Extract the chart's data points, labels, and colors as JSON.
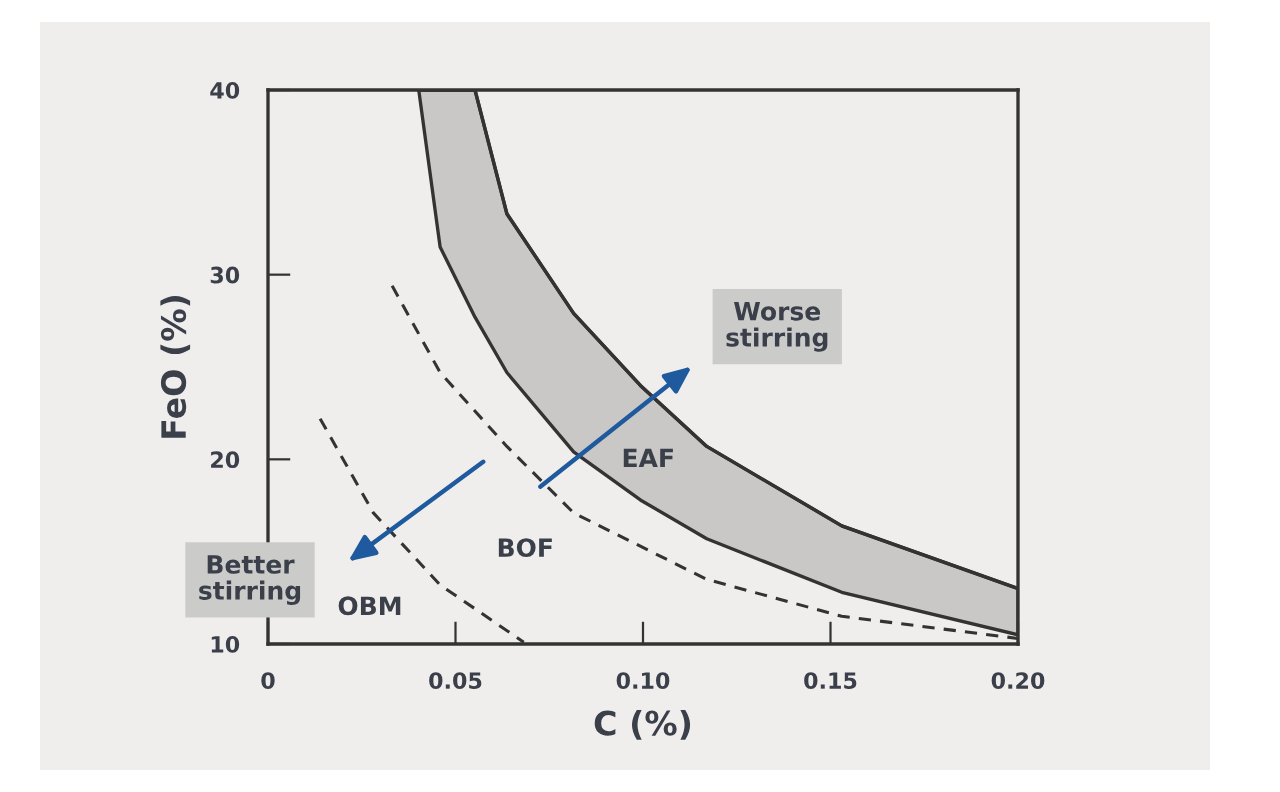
{
  "chart_data": {
    "type": "line",
    "xlabel": "C (%)",
    "ylabel": "FeO (%)",
    "xlim": [
      0,
      0.2
    ],
    "ylim": [
      10,
      40
    ],
    "xticks": [
      0,
      0.05,
      {
        "value": 0.1,
        "label": "0.10"
      },
      0.15,
      {
        "value": 0.2,
        "label": "0.20"
      }
    ],
    "yticks": [
      10,
      20,
      30,
      40
    ],
    "grid": false,
    "legend": false,
    "marker": "none",
    "series": [
      {
        "type": "line",
        "color": "#333333",
        "x": [
          0.0402,
          0.0459,
          0.0552,
          0.0637,
          0.0815,
          0.0993,
          0.117,
          0.153,
          0.2
        ],
        "lower": [
          40,
          31.5,
          27.7,
          24.7,
          20.4,
          17.8,
          15.7,
          12.8,
          10.5
        ],
        "upper": [
          40,
          40,
          40,
          33.3,
          27.9,
          24.0,
          20.7,
          16.4,
          13.0
        ],
        "values": [
          40,
          40,
          40,
          33.3,
          27.9,
          24.0,
          20.7,
          16.4,
          13.0
        ]
      },
      {
        "line_style": "dashed",
        "color": "#333333",
        "x": [
          0.0331,
          0.0459,
          0.0637,
          0.0815,
          0.117,
          0.153,
          0.2
        ],
        "values": [
          29.4,
          24.7,
          20.7,
          17.1,
          13.5,
          11.5,
          10.3
        ]
      },
      {
        "line_style": "dashed",
        "color": "#333333",
        "x": [
          0.0139,
          0.0281,
          0.0459,
          0.0682
        ],
        "values": [
          22.2,
          17.1,
          13.2,
          10.1
        ]
      }
    ],
    "annotations": [
      "EAF",
      "BOF",
      "OBM",
      "Worse\nstirring",
      "Better\nstirring"
    ]
  }
}
